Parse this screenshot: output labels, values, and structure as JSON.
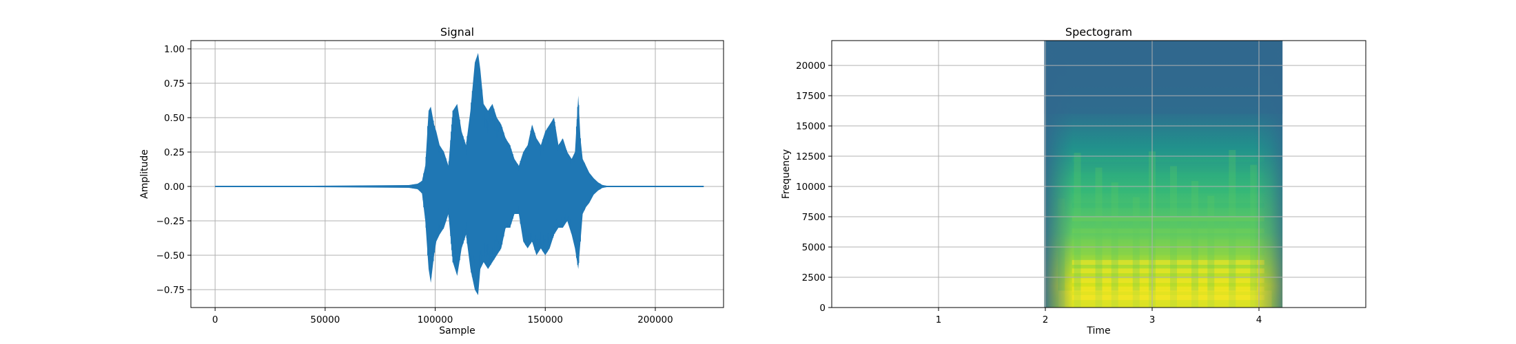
{
  "chart_data": [
    {
      "type": "line",
      "title": "Signal",
      "xlabel": "Sample",
      "ylabel": "Amplitude",
      "xlim": [
        -11000,
        231000
      ],
      "ylim": [
        -0.88,
        1.06
      ],
      "xticks": [
        0,
        50000,
        100000,
        150000,
        200000
      ],
      "xtick_labels": [
        "0",
        "50000",
        "100000",
        "150000",
        "200000"
      ],
      "yticks": [
        -0.75,
        -0.5,
        -0.25,
        0.0,
        0.25,
        0.5,
        0.75,
        1.0
      ],
      "ytick_labels": [
        "−0.75",
        "−0.50",
        "−0.25",
        "0.00",
        "0.25",
        "0.50",
        "0.75",
        "1.00"
      ],
      "grid": true,
      "color": "#1f77b4",
      "series": [
        {
          "x": [
            0,
            88000,
            92000,
            94000,
            95500,
            97000,
            98000,
            99500,
            100500,
            102000,
            104000,
            106000,
            108000,
            110000,
            112000,
            114000,
            116000,
            118000,
            119500,
            120500,
            122000,
            124000,
            126000,
            128000,
            130000,
            132000,
            134000,
            136000,
            138000,
            140000,
            142000,
            144000,
            146000,
            148000,
            150000,
            152000,
            154000,
            156000,
            158000,
            160000,
            162000,
            163500,
            165000,
            166000,
            167000,
            168500,
            170000,
            172000,
            174000,
            176000,
            180000,
            200000,
            222000
          ],
          "upper": [
            0.0,
            0.01,
            0.02,
            0.04,
            0.15,
            0.55,
            0.58,
            0.45,
            0.4,
            0.3,
            0.25,
            0.15,
            0.55,
            0.6,
            0.4,
            0.3,
            0.55,
            0.9,
            0.97,
            0.85,
            0.6,
            0.55,
            0.6,
            0.5,
            0.45,
            0.35,
            0.3,
            0.2,
            0.15,
            0.25,
            0.3,
            0.45,
            0.35,
            0.3,
            0.4,
            0.45,
            0.5,
            0.3,
            0.35,
            0.25,
            0.2,
            0.25,
            0.66,
            0.35,
            0.2,
            0.15,
            0.1,
            0.06,
            0.03,
            0.01,
            0.0,
            0.0,
            0.0
          ],
          "lower": [
            0.0,
            -0.01,
            -0.02,
            -0.05,
            -0.25,
            -0.6,
            -0.7,
            -0.5,
            -0.4,
            -0.35,
            -0.3,
            -0.2,
            -0.55,
            -0.65,
            -0.45,
            -0.35,
            -0.6,
            -0.75,
            -0.79,
            -0.6,
            -0.55,
            -0.6,
            -0.55,
            -0.5,
            -0.45,
            -0.3,
            -0.3,
            -0.2,
            -0.2,
            -0.4,
            -0.45,
            -0.4,
            -0.5,
            -0.45,
            -0.5,
            -0.45,
            -0.35,
            -0.3,
            -0.3,
            -0.25,
            -0.35,
            -0.45,
            -0.6,
            -0.4,
            -0.2,
            -0.15,
            -0.12,
            -0.06,
            -0.03,
            -0.01,
            0.0,
            0.0,
            0.0
          ]
        }
      ]
    },
    {
      "type": "heatmap",
      "title": "Spectogram",
      "xlabel": "Time",
      "ylabel": "Frequency",
      "xlim": [
        0.0,
        5.0
      ],
      "ylim": [
        0,
        22050
      ],
      "xticks": [
        1,
        2,
        3,
        4
      ],
      "xtick_labels": [
        "1",
        "2",
        "3",
        "4"
      ],
      "yticks": [
        0,
        2500,
        5000,
        7500,
        10000,
        12500,
        15000,
        17500,
        20000
      ],
      "ytick_labels": [
        "0",
        "2500",
        "5000",
        "7500",
        "10000",
        "12500",
        "15000",
        "17500",
        "20000"
      ],
      "grid": true,
      "colormap": "viridis",
      "data_extent": {
        "t0": 1.99,
        "t1": 4.22,
        "f0": 0,
        "f1": 22050
      }
    }
  ]
}
